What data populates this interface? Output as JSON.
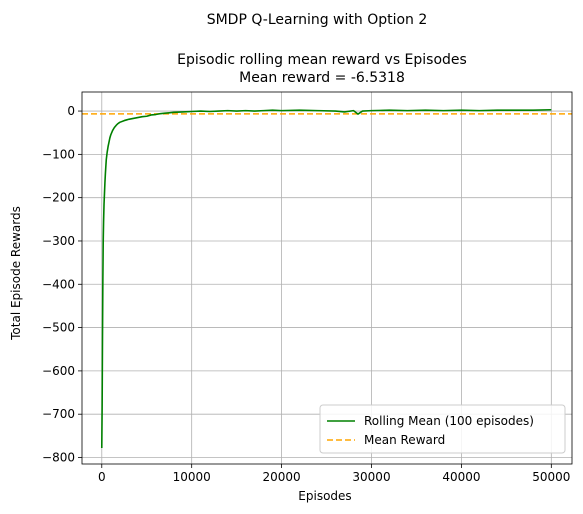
{
  "chart_data": {
    "type": "line",
    "suptitle": "SMDP Q-Learning with Option 2",
    "title_line1": "Episodic rolling mean reward vs Episodes",
    "title_line2": "Mean reward = -6.5318",
    "xlabel": "Episodes",
    "ylabel": "Total Episode Rewards",
    "xlim": [
      -2200,
      52300
    ],
    "ylim": [
      -815,
      44
    ],
    "x_ticks": [
      0,
      10000,
      20000,
      30000,
      40000,
      50000
    ],
    "x_tick_labels": [
      "0",
      "10000",
      "20000",
      "30000",
      "40000",
      "50000"
    ],
    "y_ticks": [
      0,
      -100,
      -200,
      -300,
      -400,
      -500,
      -600,
      -700,
      -800
    ],
    "y_tick_labels": [
      "0",
      "−100",
      "−200",
      "−300",
      "−400",
      "−500",
      "−600",
      "−700",
      "−800"
    ],
    "grid": true,
    "legend_position": "lower-right",
    "series": [
      {
        "name": "Rolling Mean (100 episodes)",
        "style": "solid",
        "color": "#008000",
        "x": [
          0,
          40,
          80,
          120,
          160,
          200,
          250,
          300,
          350,
          400,
          450,
          500,
          600,
          700,
          800,
          900,
          1000,
          1200,
          1400,
          1600,
          1800,
          2000,
          2500,
          3000,
          3500,
          4000,
          4500,
          5000,
          5500,
          6000,
          6500,
          7000,
          7500,
          8000,
          9000,
          10000,
          11000,
          12000,
          13000,
          14000,
          15000,
          16000,
          17000,
          18000,
          19000,
          20000,
          22000,
          24000,
          26000,
          27000,
          28000,
          28500,
          29000,
          30000,
          32000,
          34000,
          36000,
          38000,
          40000,
          42000,
          44000,
          46000,
          48000,
          50000
        ],
        "y": [
          -778,
          -680,
          -520,
          -390,
          -300,
          -255,
          -215,
          -190,
          -165,
          -145,
          -128,
          -112,
          -95,
          -82,
          -72,
          -62,
          -55,
          -45,
          -38,
          -33,
          -29,
          -26,
          -22,
          -19,
          -17,
          -15,
          -13,
          -12,
          -9,
          -8,
          -6,
          -5,
          -4,
          -3,
          -2,
          -1,
          0,
          -1,
          0,
          1,
          0,
          1,
          0,
          1,
          2,
          1,
          2,
          1,
          0,
          -2,
          1,
          -7,
          0,
          1,
          2,
          1,
          2,
          1,
          2,
          1,
          2,
          2,
          2,
          3
        ]
      },
      {
        "name": "Mean Reward",
        "style": "dashed",
        "color": "#ffa500",
        "y_constant": -6.5318
      }
    ]
  }
}
